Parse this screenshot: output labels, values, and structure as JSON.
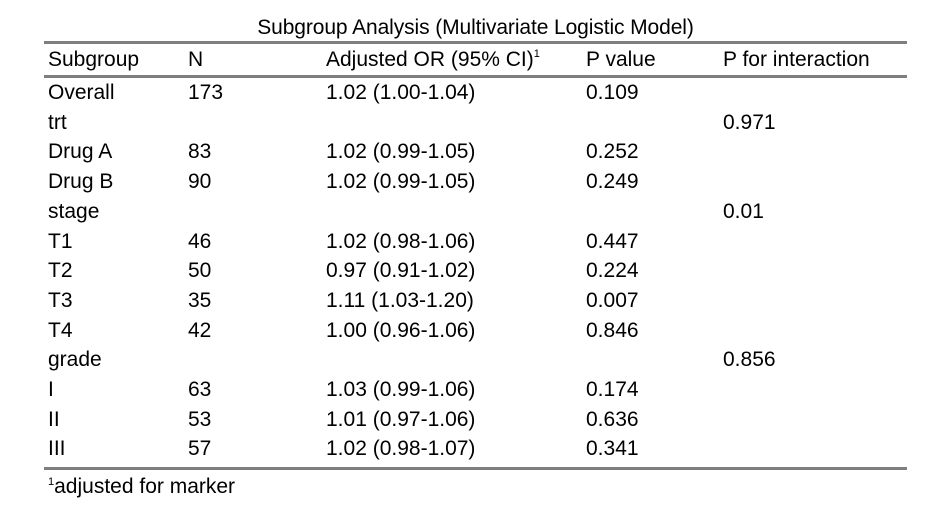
{
  "chart_data": {
    "type": "table",
    "title": "Subgroup Analysis (Multivariate Logistic Model)",
    "columns": [
      "Subgroup",
      "N",
      "Adjusted OR (95% CI)",
      "P value",
      "P for interaction"
    ],
    "header_superscript": "1",
    "rows": [
      [
        "Overall",
        "173",
        "1.02 (1.00-1.04)",
        "0.109",
        ""
      ],
      [
        "trt",
        "",
        "",
        "",
        "0.971"
      ],
      [
        "Drug A",
        "83",
        "1.02 (0.99-1.05)",
        "0.252",
        ""
      ],
      [
        "Drug B",
        "90",
        "1.02 (0.99-1.05)",
        "0.249",
        ""
      ],
      [
        "stage",
        "",
        "",
        "",
        "0.01"
      ],
      [
        "T1",
        "46",
        "1.02 (0.98-1.06)",
        "0.447",
        ""
      ],
      [
        "T2",
        "50",
        "0.97 (0.91-1.02)",
        "0.224",
        ""
      ],
      [
        "T3",
        "35",
        "1.11 (1.03-1.20)",
        "0.007",
        ""
      ],
      [
        "T4",
        "42",
        "1.00 (0.96-1.06)",
        "0.846",
        ""
      ],
      [
        "grade",
        "",
        "",
        "",
        "0.856"
      ],
      [
        "I",
        "63",
        "1.03 (0.99-1.06)",
        "0.174",
        ""
      ],
      [
        "II",
        "53",
        "1.01 (0.97-1.06)",
        "0.636",
        ""
      ],
      [
        "III",
        "57",
        "1.02 (0.98-1.07)",
        "0.341",
        ""
      ]
    ],
    "footnote_marker": "1",
    "footnote": "adjusted for marker"
  }
}
